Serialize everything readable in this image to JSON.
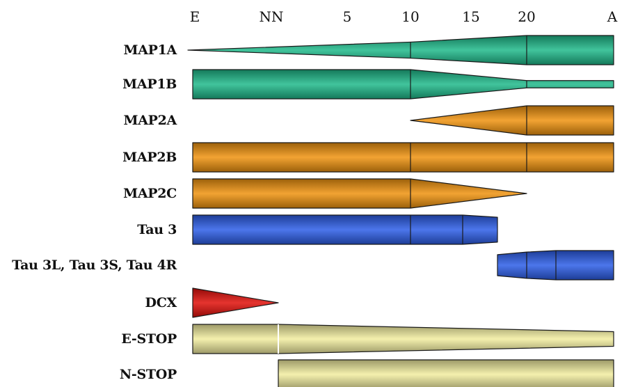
{
  "axis": {
    "ticks": [
      "E",
      "NN",
      "5",
      "10",
      "15",
      "20",
      "A"
    ]
  },
  "colors": {
    "teal": "#1fba8a",
    "orange": "#f0930f",
    "blue": "#2c5ee8",
    "red": "#e0100a",
    "yellow": "#f2eda0"
  },
  "rows": [
    {
      "label": "MAP1A",
      "color": "teal",
      "profile": [
        [
          "E",
          0
        ],
        [
          "10",
          0.55
        ],
        [
          "20",
          1
        ],
        [
          "A",
          1
        ]
      ],
      "dividers": [
        "10",
        "20"
      ]
    },
    {
      "label": "MAP1B",
      "color": "teal",
      "profile": [
        [
          "E",
          1
        ],
        [
          "10",
          1
        ],
        [
          "20",
          0.25
        ],
        [
          "A",
          0.25
        ]
      ],
      "dividers": [
        "10",
        "20"
      ]
    },
    {
      "label": "MAP2A",
      "color": "orange",
      "profile": [
        [
          "10",
          0
        ],
        [
          "20",
          1
        ],
        [
          "A",
          1
        ]
      ],
      "dividers": [
        "20"
      ]
    },
    {
      "label": "MAP2B",
      "color": "orange",
      "profile": [
        [
          "E",
          1
        ],
        [
          "A",
          1
        ]
      ],
      "dividers": [
        "10",
        "20"
      ]
    },
    {
      "label": "MAP2C",
      "color": "orange",
      "profile": [
        [
          "E",
          1
        ],
        [
          "10",
          1
        ],
        [
          "20",
          0
        ]
      ],
      "dividers": [
        "10"
      ]
    },
    {
      "label": "Tau 3",
      "color": "blue",
      "profile": [
        [
          "E",
          1
        ],
        [
          "10",
          1
        ],
        [
          "15",
          1
        ],
        [
          "17.5",
          0.85
        ]
      ],
      "dividers": [
        "10",
        "15"
      ]
    },
    {
      "label": "Tau 3L, Tau 3S, Tau 4R",
      "color": "blue",
      "profile": [
        [
          "17.5",
          0.72
        ],
        [
          "20",
          0.9
        ],
        [
          "22.5",
          1
        ],
        [
          "A",
          1
        ]
      ],
      "dividers": [
        "20",
        "22.5"
      ]
    },
    {
      "label": "DCX",
      "color": "red",
      "profile": [
        [
          "E",
          1
        ],
        [
          "NN",
          0
        ]
      ],
      "dividers": []
    },
    {
      "label": "E-STOP",
      "color": "yellow",
      "profile": [
        [
          "E",
          1
        ],
        [
          "NN",
          1
        ],
        [
          "A",
          0.5
        ]
      ],
      "dividers": [
        "NN"
      ]
    },
    {
      "label": "N-STOP",
      "color": "yellow",
      "profile": [
        [
          "NN",
          1
        ],
        [
          "A",
          1
        ]
      ],
      "dividers": []
    }
  ]
}
